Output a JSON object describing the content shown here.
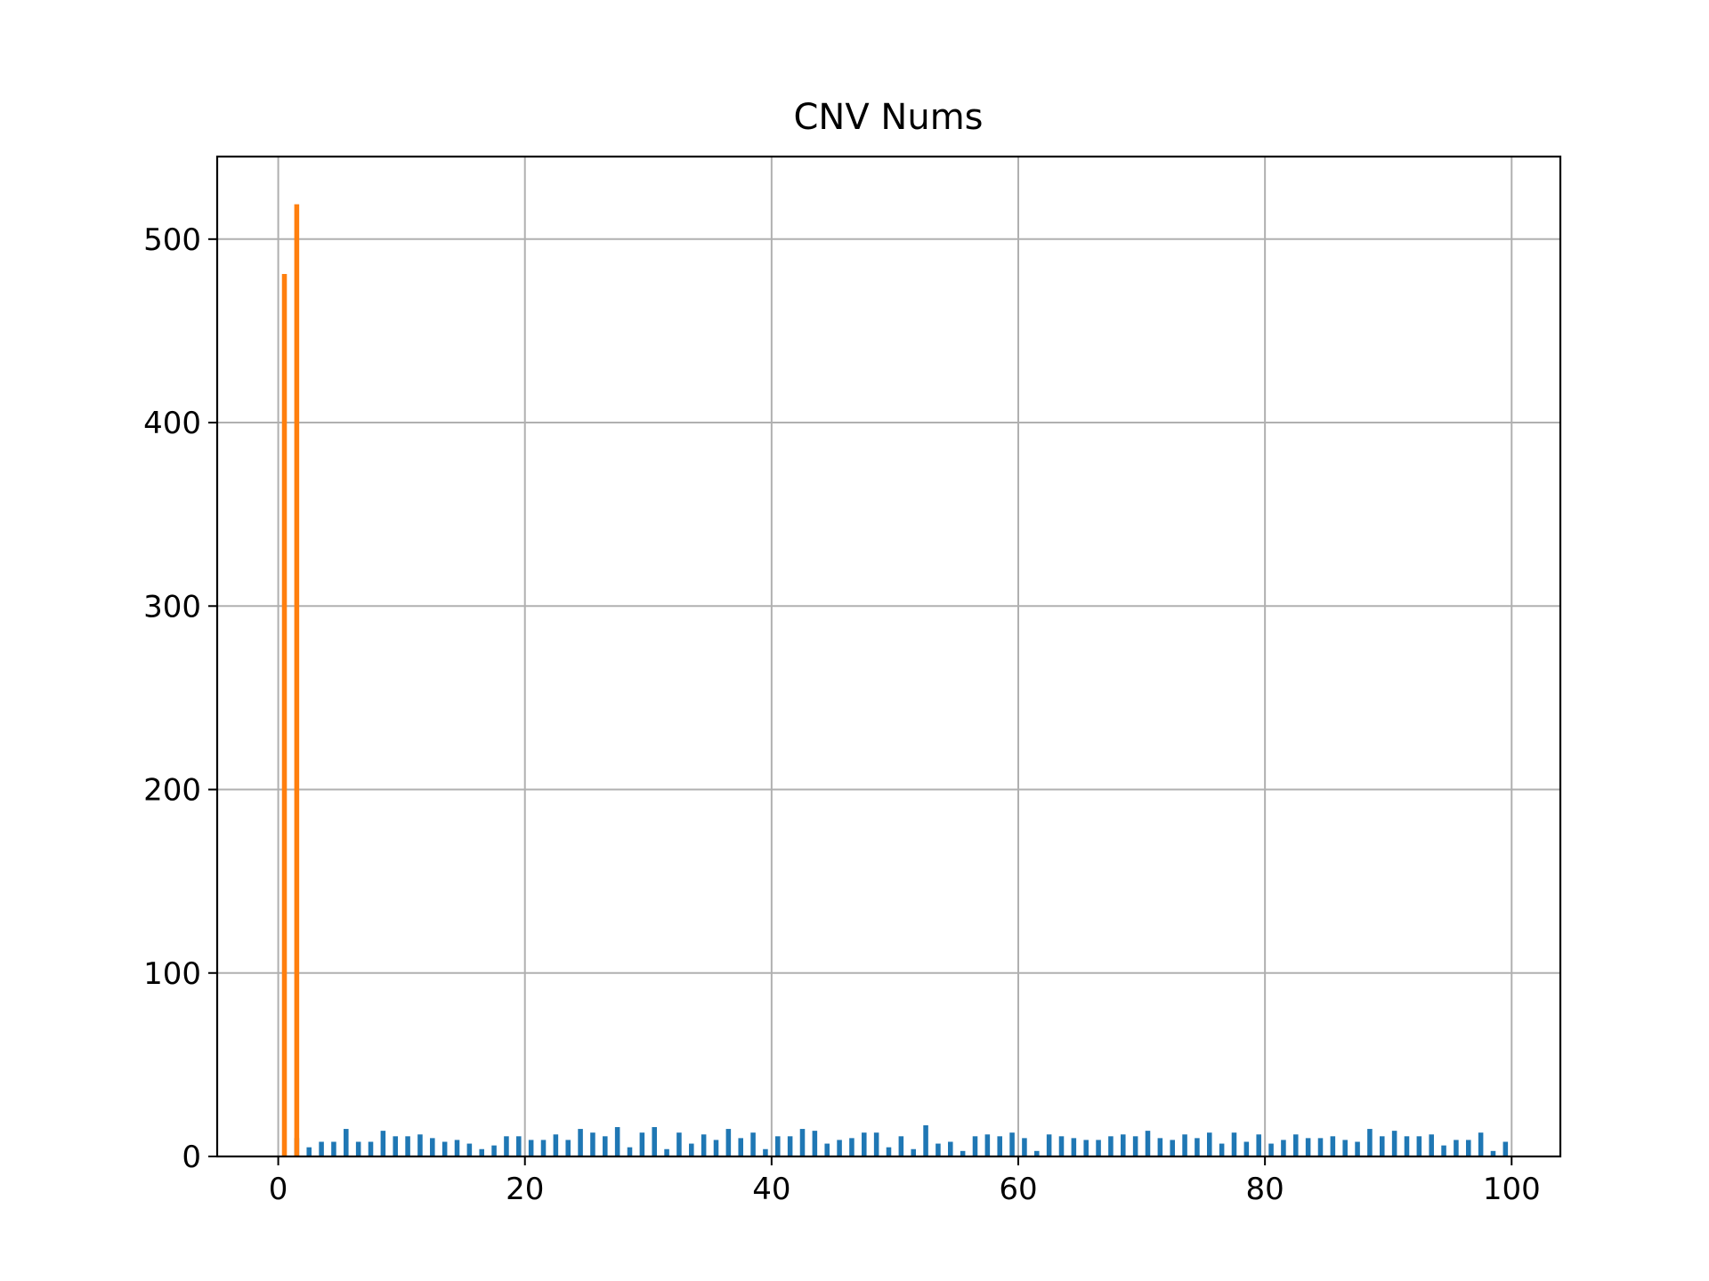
{
  "chart_data": {
    "type": "bar",
    "title": "CNV Nums",
    "xlabel": "",
    "ylabel": "",
    "xlim": [
      -4.95,
      103.95
    ],
    "ylim": [
      0,
      545
    ],
    "xticks": [
      0,
      20,
      40,
      60,
      80,
      100
    ],
    "yticks": [
      0,
      100,
      200,
      300,
      400,
      500
    ],
    "grid": true,
    "series": [
      {
        "color": "#1f77b4",
        "bar_width_data": 0.4,
        "points": [
          [
            1.5,
            10
          ],
          [
            2.5,
            5
          ],
          [
            3.5,
            8
          ],
          [
            4.5,
            8
          ],
          [
            5.5,
            15
          ],
          [
            6.5,
            8
          ],
          [
            7.5,
            8
          ],
          [
            8.5,
            14
          ],
          [
            9.5,
            11
          ],
          [
            10.5,
            11
          ],
          [
            11.5,
            12
          ],
          [
            12.5,
            10
          ],
          [
            13.5,
            8
          ],
          [
            14.5,
            9
          ],
          [
            15.5,
            7
          ],
          [
            16.5,
            4
          ],
          [
            17.5,
            6
          ],
          [
            18.5,
            11
          ],
          [
            19.5,
            11
          ],
          [
            20.5,
            9
          ],
          [
            21.5,
            9
          ],
          [
            22.5,
            12
          ],
          [
            23.5,
            9
          ],
          [
            24.5,
            15
          ],
          [
            25.5,
            13
          ],
          [
            26.5,
            11
          ],
          [
            27.5,
            16
          ],
          [
            28.5,
            5
          ],
          [
            29.5,
            13
          ],
          [
            30.5,
            16
          ],
          [
            31.5,
            4
          ],
          [
            32.5,
            13
          ],
          [
            33.5,
            7
          ],
          [
            34.5,
            12
          ],
          [
            35.5,
            9
          ],
          [
            36.5,
            15
          ],
          [
            37.5,
            10
          ],
          [
            38.5,
            13
          ],
          [
            39.5,
            4
          ],
          [
            40.5,
            11
          ],
          [
            41.5,
            11
          ],
          [
            42.5,
            15
          ],
          [
            43.5,
            14
          ],
          [
            44.5,
            7
          ],
          [
            45.5,
            9
          ],
          [
            46.5,
            10
          ],
          [
            47.5,
            13
          ],
          [
            48.5,
            13
          ],
          [
            49.5,
            5
          ],
          [
            50.5,
            11
          ],
          [
            51.5,
            4
          ],
          [
            52.5,
            17
          ],
          [
            53.5,
            7
          ],
          [
            54.5,
            8
          ],
          [
            55.5,
            3
          ],
          [
            56.5,
            11
          ],
          [
            57.5,
            12
          ],
          [
            58.5,
            11
          ],
          [
            59.5,
            13
          ],
          [
            60.5,
            10
          ],
          [
            61.5,
            3
          ],
          [
            62.5,
            12
          ],
          [
            63.5,
            11
          ],
          [
            64.5,
            10
          ],
          [
            65.5,
            9
          ],
          [
            66.5,
            9
          ],
          [
            67.5,
            11
          ],
          [
            68.5,
            12
          ],
          [
            69.5,
            11
          ],
          [
            70.5,
            14
          ],
          [
            71.5,
            10
          ],
          [
            72.5,
            9
          ],
          [
            73.5,
            12
          ],
          [
            74.5,
            10
          ],
          [
            75.5,
            13
          ],
          [
            76.5,
            7
          ],
          [
            77.5,
            13
          ],
          [
            78.5,
            8
          ],
          [
            79.5,
            12
          ],
          [
            80.5,
            7
          ],
          [
            81.5,
            9
          ],
          [
            82.5,
            12
          ],
          [
            83.5,
            10
          ],
          [
            84.5,
            10
          ],
          [
            85.5,
            11
          ],
          [
            86.5,
            9
          ],
          [
            87.5,
            8
          ],
          [
            88.5,
            15
          ],
          [
            89.5,
            11
          ],
          [
            90.5,
            14
          ],
          [
            91.5,
            11
          ],
          [
            92.5,
            11
          ],
          [
            93.5,
            12
          ],
          [
            94.5,
            6
          ],
          [
            95.5,
            9
          ],
          [
            96.5,
            9
          ],
          [
            97.5,
            13
          ],
          [
            98.5,
            3
          ],
          [
            99.5,
            8
          ]
        ]
      },
      {
        "color": "#ff7f0e",
        "bar_width_data": 0.4,
        "points": [
          [
            0.5,
            481
          ],
          [
            1.5,
            519
          ]
        ]
      }
    ]
  }
}
